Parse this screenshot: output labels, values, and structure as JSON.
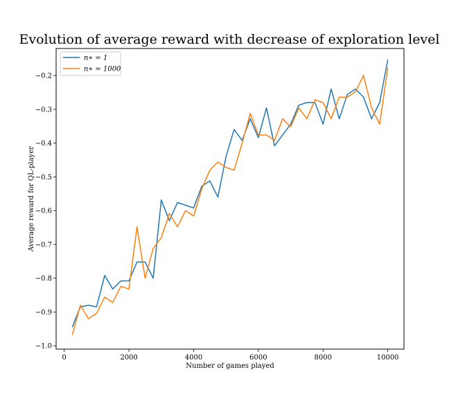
{
  "chart_data": {
    "type": "line",
    "title": "Evolution of average reward with decrease of exploration level",
    "xlabel": "Number of games played",
    "ylabel": "Average reward for QL-player",
    "xlim": [
      -250,
      10500
    ],
    "ylim": [
      -1.01,
      -0.12
    ],
    "xticks": [
      0,
      2000,
      4000,
      6000,
      8000,
      10000
    ],
    "yticks": [
      -1.0,
      -0.9,
      -0.8,
      -0.7,
      -0.6,
      -0.5,
      -0.4,
      -0.3,
      -0.2
    ],
    "xtick_labels": [
      "0",
      "2000",
      "4000",
      "6000",
      "8000",
      "10000"
    ],
    "ytick_labels": [
      "−1.0",
      "−0.9",
      "−0.8",
      "−0.7",
      "−0.6",
      "−0.5",
      "−0.4",
      "−0.3",
      "−0.2"
    ],
    "legend_position": "top-left",
    "grid": false,
    "x": [
      250,
      500,
      750,
      1000,
      1250,
      1500,
      1750,
      2000,
      2250,
      2500,
      2750,
      3000,
      3250,
      3500,
      3750,
      4000,
      4250,
      4500,
      4750,
      5000,
      5250,
      5500,
      5750,
      6000,
      6250,
      6500,
      6750,
      7000,
      7250,
      7500,
      7750,
      8000,
      8250,
      8500,
      8750,
      9000,
      9250,
      9500,
      9750,
      10000
    ],
    "series": [
      {
        "name": "n∗ = 1",
        "color": "#1f77b4",
        "values": [
          -0.945,
          -0.885,
          -0.88,
          -0.885,
          -0.792,
          -0.832,
          -0.808,
          -0.808,
          -0.752,
          -0.752,
          -0.8,
          -0.568,
          -0.63,
          -0.576,
          -0.584,
          -0.592,
          -0.528,
          -0.512,
          -0.56,
          -0.44,
          -0.36,
          -0.392,
          -0.328,
          -0.384,
          -0.296,
          -0.408,
          -0.376,
          -0.344,
          -0.288,
          -0.28,
          -0.28,
          -0.344,
          -0.24,
          -0.328,
          -0.256,
          -0.24,
          -0.264,
          -0.328,
          -0.28,
          -0.153
        ]
      },
      {
        "name": "n∗ = 1000",
        "color": "#ff7f0e",
        "values": [
          -0.968,
          -0.88,
          -0.92,
          -0.904,
          -0.856,
          -0.872,
          -0.824,
          -0.832,
          -0.648,
          -0.8,
          -0.712,
          -0.68,
          -0.608,
          -0.648,
          -0.6,
          -0.616,
          -0.536,
          -0.48,
          -0.456,
          -0.472,
          -0.48,
          -0.4,
          -0.312,
          -0.376,
          -0.376,
          -0.392,
          -0.328,
          -0.352,
          -0.296,
          -0.328,
          -0.272,
          -0.28,
          -0.328,
          -0.264,
          -0.264,
          -0.248,
          -0.2,
          -0.296,
          -0.344,
          -0.176
        ]
      }
    ]
  }
}
